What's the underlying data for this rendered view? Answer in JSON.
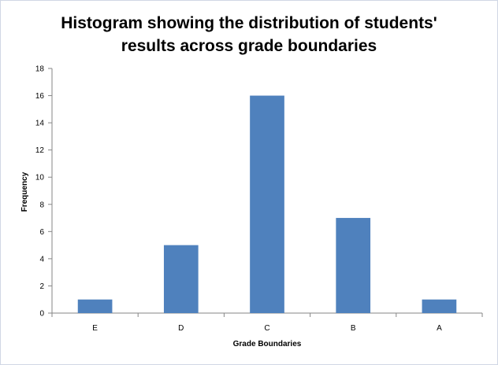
{
  "chart_data": {
    "type": "bar",
    "title": [
      "Histogram showing the distribution of students'",
      "results across grade boundaries"
    ],
    "xlabel": "Grade Boundaries",
    "ylabel": "Frequency",
    "categories": [
      "E",
      "D",
      "C",
      "B",
      "A"
    ],
    "values": [
      1,
      5,
      16,
      7,
      1
    ],
    "ylim": [
      0,
      18
    ],
    "yticks": [
      "0",
      "2",
      "4",
      "6",
      "8",
      "10",
      "12",
      "14",
      "16",
      "18"
    ],
    "grid": false,
    "legend": "none",
    "bar_color": "#4f81bd"
  }
}
